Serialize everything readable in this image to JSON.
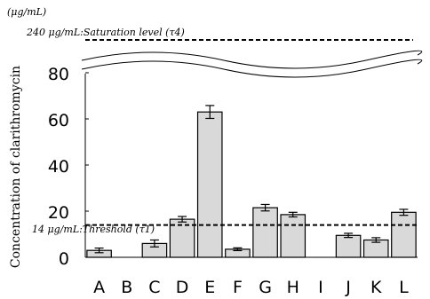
{
  "chart_data": {
    "type": "bar",
    "unit_label": "(μg/mL)",
    "ylabel": "Concentration of clarithromycin",
    "categories": [
      "A",
      "B",
      "C",
      "D",
      "E",
      "F",
      "G",
      "H",
      "I",
      "J",
      "K",
      "L"
    ],
    "values": [
      3,
      0,
      6,
      16.5,
      63,
      3.5,
      21.5,
      18.5,
      0,
      9.5,
      7.5,
      19.5
    ],
    "errors": [
      1,
      0,
      1.5,
      1.2,
      2.8,
      0.6,
      1.4,
      1.0,
      0,
      0.9,
      1.0,
      1.3
    ],
    "ylim": [
      0,
      85
    ],
    "yticks": [
      0,
      20,
      40,
      60,
      80
    ],
    "reference_lines": [
      {
        "value": 14,
        "label": "14 μg/mL:Threshold (τ1)"
      },
      {
        "value": 240,
        "label": "240 μg/mL:Saturation level (τ4)"
      }
    ],
    "axis_break": true,
    "grid": false,
    "colors": {
      "bar_fill": "#d9d9d9",
      "bar_stroke": "#000000"
    }
  }
}
